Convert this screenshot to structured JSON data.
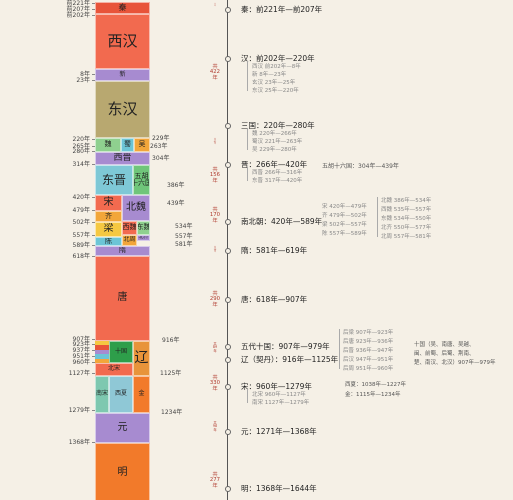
{
  "blocks": [
    {
      "id": "qin",
      "label": "秦",
      "color": "#e8543a"
    },
    {
      "id": "xihan",
      "label": "西汉",
      "color": "#f26a4f"
    },
    {
      "id": "xin",
      "label": "新",
      "color": "#a78bd0"
    },
    {
      "id": "donghan",
      "label": "东汉",
      "color": "#b8a870"
    },
    {
      "id": "wei",
      "label": "魏",
      "color": "#8fd08f"
    },
    {
      "id": "shu",
      "label": "蜀",
      "color": "#6cc5d6"
    },
    {
      "id": "wu",
      "label": "吴",
      "color": "#f2a63a"
    },
    {
      "id": "xijin",
      "label": "西晋",
      "color": "#a78bd0"
    },
    {
      "id": "dongjin",
      "label": "东晋",
      "color": "#7ec8d6"
    },
    {
      "id": "wuhu",
      "label": "五胡\n十六国",
      "color": "#6fc57a"
    },
    {
      "id": "song",
      "label": "宋",
      "color": "#f26a4f"
    },
    {
      "id": "beiwei",
      "label": "北魏",
      "color": "#a78bd0"
    },
    {
      "id": "qi",
      "label": "齐",
      "color": "#f2a63a"
    },
    {
      "id": "liang",
      "label": "梁",
      "color": "#f5c842"
    },
    {
      "id": "xiwei",
      "label": "西魏",
      "color": "#f26a4f"
    },
    {
      "id": "dongwei",
      "label": "东魏",
      "color": "#8fd08f"
    },
    {
      "id": "chen",
      "label": "陈",
      "color": "#6cc5d6"
    },
    {
      "id": "beiqi",
      "label": "北齐",
      "color": "#a78bd0"
    },
    {
      "id": "beizhou",
      "label": "北周",
      "color": "#f2a63a"
    },
    {
      "id": "sui",
      "label": "隋",
      "color": "#a78bd0"
    },
    {
      "id": "tang",
      "label": "唐",
      "color": "#f26a4f"
    },
    {
      "id": "shiguo",
      "label": "十国",
      "color": "#2e9e4a"
    },
    {
      "id": "liao",
      "label": "辽",
      "color": "#e8943a"
    },
    {
      "id": "beisong",
      "label": "北宋",
      "color": "#f26a4f"
    },
    {
      "id": "nansong",
      "label": "南宋",
      "color": "#7ec8b0"
    },
    {
      "id": "xixia",
      "label": "西夏",
      "color": "#8fc8d6"
    },
    {
      "id": "jin",
      "label": "金",
      "color": "#f27a2a"
    },
    {
      "id": "yuan",
      "label": "元",
      "color": "#a78bd0"
    },
    {
      "id": "ming",
      "label": "明",
      "color": "#f27a2a"
    }
  ],
  "years": [
    "前221年",
    "前207年",
    "前202年",
    "8年",
    "23年",
    "220年",
    "265年",
    "280年",
    "314年",
    "420年",
    "479年",
    "502年",
    "557年",
    "589年",
    "618年",
    "907年",
    "923年",
    "937年",
    "951年",
    "960年",
    "1127年",
    "1279年",
    "1368年"
  ],
  "years_right": [
    "229年",
    "263年",
    "304年",
    "386年",
    "439年",
    "534年",
    "557年",
    "581年",
    "916年",
    "1125年",
    "1234年"
  ],
  "durations": [
    {
      "a": "共",
      "b": "15",
      "c": "年"
    },
    {
      "a": "共",
      "b": "422",
      "c": "年"
    },
    {
      "a": "共",
      "b": "61",
      "c": "年"
    },
    {
      "a": "共",
      "b": "156",
      "c": "年"
    },
    {
      "a": "共",
      "b": "170",
      "c": "年"
    },
    {
      "a": "共",
      "b": "38",
      "c": "年"
    },
    {
      "a": "共",
      "b": "290",
      "c": "年"
    },
    {
      "a": "共",
      "b": "89",
      "c": "年"
    },
    {
      "a": "共",
      "b": "330",
      "c": "年"
    },
    {
      "a": "共",
      "b": "98",
      "c": "年"
    },
    {
      "a": "共",
      "b": "277",
      "c": "年"
    }
  ],
  "dynasties": [
    {
      "main": "秦：前221年—前207年",
      "subs": []
    },
    {
      "main": "汉：前202年—220年",
      "subs": [
        "西汉 前202年—8年",
        "新 8年—23年",
        "玄汉 23年—25年",
        "东汉 25年—220年"
      ]
    },
    {
      "main": "三国：220年—280年",
      "subs": [
        "魏 220年—266年",
        "蜀汉 221年—263年",
        "吴 229年—280年"
      ]
    },
    {
      "main": "晋：266年—420年",
      "subs": [
        "西晋 266年—316年",
        "东晋 317年—420年"
      ]
    },
    {
      "main": "南北朝：420年—589年",
      "subs": []
    },
    {
      "main": "隋：581年—619年",
      "subs": []
    },
    {
      "main": "唐：618年—907年",
      "subs": []
    },
    {
      "main": "五代十国：907年—979年",
      "subs": []
    },
    {
      "main": "辽（契丹）：916年—1125年",
      "subs": []
    },
    {
      "main": "宋：960年—1279年",
      "subs": [
        "北宋 960年—1127年",
        "南宋 1127年—1279年"
      ]
    },
    {
      "main": "元：1271年—1368年",
      "subs": []
    },
    {
      "main": "明：1368年—1644年",
      "subs": []
    }
  ],
  "extras": {
    "wuhu": "五胡十六国：304年—439年",
    "nan": [
      "宋 420年—479年",
      "齐 479年—502年",
      "梁 502年—557年",
      "陈 557年—589年"
    ],
    "bei": [
      "北魏 386年—534年",
      "西魏 535年—557年",
      "东魏 534年—550年",
      "北齐 550年—577年",
      "北周 557年—581年"
    ],
    "wudai": [
      "后梁 907年—923年",
      "后唐 923年—936年",
      "后晋 936年—947年",
      "后汉 947年—951年",
      "后周 951年—960年"
    ],
    "shiguo": [
      "十国（吴、南唐、吴越、",
      "闽、前蜀、后蜀、荆南、",
      "楚、南汉、北汉）907年—979年"
    ],
    "xixia": "西夏：1038年—1227年",
    "jin": "金：1115年—1234年"
  }
}
